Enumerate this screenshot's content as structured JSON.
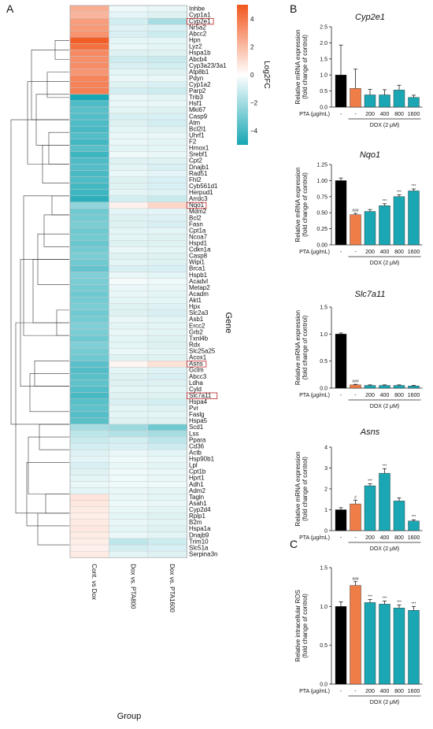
{
  "colors": {
    "black": "#000000",
    "orange": "#ef7d48",
    "teal": "#1aa7b3",
    "box": "#c0393b"
  },
  "panels": {
    "A": "A",
    "B": "B",
    "C": "C"
  },
  "chart_data": [
    {
      "type": "heatmap",
      "xlabel": "Group",
      "ylabel": "Gene",
      "columns": [
        "Cont. vs Dox",
        "Dox vs. PTA800",
        "Dox vs. PTA1600"
      ],
      "legend": {
        "title": "Log2FC",
        "ticks": [
          "4",
          "2",
          "0",
          "−2",
          "−4"
        ],
        "tick_values": [
          4,
          2,
          0,
          -2,
          -4
        ],
        "range": [
          -5,
          5
        ]
      },
      "highlighted": [
        "Cyp2e1",
        "Nqo1",
        "Asns",
        "Slc7a11"
      ],
      "genes": [
        "Inhbe",
        "Cyp1a1",
        "Cyp2e1",
        "Nr5a2",
        "Abcc2",
        "Hpn",
        "Lyz2",
        "Hspa1b",
        "Abcb4",
        "Cyp3a23/3a1",
        "Atp8b1",
        "Pdyn",
        "Cyp1a2",
        "Parp2",
        "Trib3",
        "Hsf1",
        "Mki67",
        "Casp9",
        "Atm",
        "Bcl2l1",
        "Uhrf1",
        "F2",
        "Hmox1",
        "Srebf1",
        "Cpt2",
        "Dnajb1",
        "Rad51",
        "Fhl2",
        "Cyb561d1",
        "Herpud1",
        "Arrdc3",
        "Nqo1",
        "Mdm2",
        "Bcl2",
        "Fasn",
        "Cpt1a",
        "Ncoa7",
        "Hspd1",
        "Cdkn1a",
        "Casp8",
        "Wipi1",
        "Brca1",
        "Hspb1",
        "Acadvl",
        "Metap2",
        "Acadm",
        "Akt1",
        "Hpx",
        "Slc2a3",
        "Asb1",
        "Ercc2",
        "Grb2",
        "Txnl4b",
        "Rdx",
        "Slc25a25",
        "Acox1",
        "Asns",
        "Gclm",
        "Abcc3",
        "Ldha",
        "Cyld",
        "Slc7a11",
        "Hspa4",
        "Pvr",
        "Faslg",
        "Hspa5",
        "Scd1",
        "Lss",
        "Ppara",
        "Cd36",
        "Actb",
        "Hsp90b1",
        "Lpl",
        "Cpt1b",
        "Hprt1",
        "Adh1",
        "Adm2",
        "Tagln",
        "Asah1",
        "Cyp2d4",
        "Rplp1",
        "B2m",
        "Hspa1a",
        "Dnajb9",
        "Trim10",
        "Slc51a",
        "Serpina3n"
      ],
      "values": [
        [
          2.4,
          -0.3,
          -0.4
        ],
        [
          2.2,
          -0.5,
          -0.6
        ],
        [
          2.9,
          -0.8,
          -1.6
        ],
        [
          3.0,
          -0.6,
          -0.7
        ],
        [
          3.2,
          -0.7,
          -0.9
        ],
        [
          4.8,
          -0.5,
          -0.5
        ],
        [
          4.2,
          -0.4,
          -0.5
        ],
        [
          3.5,
          -0.6,
          -0.6
        ],
        [
          3.3,
          -0.9,
          -1.0
        ],
        [
          3.4,
          -0.7,
          -0.8
        ],
        [
          3.1,
          -0.5,
          -0.6
        ],
        [
          3.6,
          -0.4,
          -0.4
        ],
        [
          3.7,
          -0.6,
          -0.7
        ],
        [
          3.8,
          -0.8,
          -0.9
        ],
        [
          -4.2,
          -0.4,
          -0.5
        ],
        [
          -3.2,
          -0.4,
          -0.4
        ],
        [
          -3.0,
          -0.5,
          -0.6
        ],
        [
          -3.1,
          -0.7,
          -0.7
        ],
        [
          -3.2,
          -0.6,
          -0.8
        ],
        [
          -3.3,
          -0.5,
          -0.6
        ],
        [
          -3.1,
          -0.4,
          -0.4
        ],
        [
          -3.4,
          -0.4,
          -0.5
        ],
        [
          -3.0,
          -0.5,
          -0.5
        ],
        [
          -3.5,
          -0.3,
          -0.4
        ],
        [
          -3.2,
          -0.6,
          -0.6
        ],
        [
          -3.1,
          -0.5,
          -0.7
        ],
        [
          -3.3,
          -0.4,
          -0.5
        ],
        [
          -3.2,
          -0.6,
          -0.7
        ],
        [
          -3.4,
          -0.6,
          -0.7
        ],
        [
          -3.5,
          -0.5,
          -0.6
        ],
        [
          -3.8,
          -0.8,
          -1.0
        ],
        [
          -2.0,
          0.4,
          1.2
        ],
        [
          -2.6,
          -0.5,
          -0.5
        ],
        [
          -2.5,
          -0.6,
          -0.6
        ],
        [
          -2.4,
          -0.6,
          -0.7
        ],
        [
          -2.6,
          -0.5,
          -0.5
        ],
        [
          -2.5,
          -0.5,
          -0.6
        ],
        [
          -2.7,
          -0.6,
          -0.6
        ],
        [
          -2.5,
          -0.4,
          -0.5
        ],
        [
          -2.4,
          -0.6,
          -0.6
        ],
        [
          -2.6,
          -0.5,
          -0.6
        ],
        [
          -2.8,
          -0.7,
          -0.7
        ],
        [
          -2.3,
          -0.4,
          -0.5
        ],
        [
          -2.4,
          -0.2,
          -0.3
        ],
        [
          -2.5,
          -0.4,
          -0.4
        ],
        [
          -2.6,
          -0.4,
          -0.5
        ],
        [
          -2.5,
          -0.5,
          -0.5
        ],
        [
          -2.4,
          -0.6,
          -0.6
        ],
        [
          -2.6,
          -0.6,
          -0.7
        ],
        [
          -2.5,
          -0.4,
          -0.5
        ],
        [
          -2.3,
          -0.5,
          -0.5
        ],
        [
          -2.4,
          -0.4,
          -0.5
        ],
        [
          -2.6,
          -0.5,
          -0.6
        ],
        [
          -2.3,
          -0.5,
          -0.6
        ],
        [
          -2.5,
          -0.4,
          -0.5
        ],
        [
          -2.6,
          -0.6,
          -0.6
        ],
        [
          -3.0,
          0.3,
          0.9
        ],
        [
          -3.1,
          -0.5,
          -0.6
        ],
        [
          -3.0,
          -0.6,
          -0.7
        ],
        [
          -2.9,
          -0.6,
          -0.6
        ],
        [
          -3.1,
          -0.5,
          -0.5
        ],
        [
          -3.3,
          -0.6,
          -0.6
        ],
        [
          -3.0,
          -0.7,
          -0.8
        ],
        [
          -2.9,
          -0.5,
          -0.6
        ],
        [
          -3.1,
          -0.5,
          -0.5
        ],
        [
          -3.0,
          -0.6,
          -0.6
        ],
        [
          -1.6,
          -1.8,
          -2.6
        ],
        [
          -1.2,
          -1.4,
          -1.6
        ],
        [
          -1.0,
          -0.8,
          -1.2
        ],
        [
          -0.8,
          -0.7,
          -0.9
        ],
        [
          -0.6,
          -0.4,
          -0.5
        ],
        [
          -0.5,
          -0.3,
          -0.4
        ],
        [
          -0.7,
          -0.4,
          -0.5
        ],
        [
          -0.6,
          -0.3,
          -0.4
        ],
        [
          -0.5,
          -0.3,
          -0.4
        ],
        [
          -0.4,
          -0.3,
          -0.3
        ],
        [
          -0.5,
          -0.4,
          -0.5
        ],
        [
          0.8,
          -0.4,
          -0.5
        ],
        [
          0.7,
          -0.3,
          -0.4
        ],
        [
          0.6,
          -0.4,
          -0.5
        ],
        [
          0.5,
          -0.5,
          -0.6
        ],
        [
          0.6,
          -0.4,
          -0.5
        ],
        [
          0.7,
          -0.5,
          -0.6
        ],
        [
          0.6,
          -0.4,
          -0.5
        ],
        [
          0.5,
          -1.2,
          -0.9
        ],
        [
          0.4,
          -0.8,
          -0.7
        ],
        [
          0.6,
          -0.5,
          -0.6
        ]
      ]
    },
    {
      "type": "bar",
      "panel": "B",
      "title": "Cyp2e1",
      "ylabel": "Relative mRNA expression",
      "ylabel2": "(fold change of control)",
      "ylim": [
        0,
        2.5
      ],
      "yticks": [
        "0.0",
        "0.5",
        "1.0",
        "1.5",
        "2.0",
        "2.5"
      ],
      "ytick_values": [
        0,
        0.5,
        1,
        1.5,
        2,
        2.5
      ],
      "xaxis_label": "PTA (μg/mL)",
      "categories": [
        "-",
        "-",
        "200",
        "400",
        "800",
        "1600"
      ],
      "group_label": "DOX (2 μM)",
      "values": [
        1.0,
        0.58,
        0.38,
        0.38,
        0.53,
        0.3
      ],
      "errors": [
        0.93,
        0.6,
        0.17,
        0.16,
        0.15,
        0.07
      ],
      "bar_colors": [
        "black",
        "orange",
        "teal",
        "teal",
        "teal",
        "teal"
      ],
      "sig": [
        "",
        "",
        "",
        "",
        "",
        ""
      ]
    },
    {
      "type": "bar",
      "panel": "B",
      "title": "Nqo1",
      "ylabel": "Relative mRNA expression",
      "ylabel2": "(fold change of control)",
      "ylim": [
        0,
        1.25
      ],
      "yticks": [
        "0.00",
        "0.25",
        "0.50",
        "0.75",
        "1.00",
        "1.25"
      ],
      "ytick_values": [
        0,
        0.25,
        0.5,
        0.75,
        1.0,
        1.25
      ],
      "xaxis_label": "PTA (μg/mL)",
      "categories": [
        "-",
        "-",
        "200",
        "400",
        "800",
        "1600"
      ],
      "group_label": "DOX (2 μM)",
      "values": [
        1.0,
        0.47,
        0.52,
        0.61,
        0.75,
        0.84
      ],
      "errors": [
        0.04,
        0.02,
        0.03,
        0.03,
        0.03,
        0.03
      ],
      "bar_colors": [
        "black",
        "orange",
        "teal",
        "teal",
        "teal",
        "teal"
      ],
      "sig": [
        "",
        "###",
        "",
        "***",
        "***",
        "***"
      ]
    },
    {
      "type": "bar",
      "panel": "B",
      "title": "Slc7a11",
      "ylabel": "Relative mRNA expression",
      "ylabel2": "(fold change of control)",
      "ylim": [
        0,
        1.5
      ],
      "yticks": [
        "0.0",
        "0.5",
        "1.0",
        "1.5"
      ],
      "ytick_values": [
        0,
        0.5,
        1.0,
        1.5
      ],
      "xaxis_label": "PTA (μg/mL)",
      "categories": [
        "-",
        "-",
        "200",
        "400",
        "800",
        "1600"
      ],
      "group_label": "DOX (2 μM)",
      "values": [
        1.0,
        0.06,
        0.05,
        0.05,
        0.05,
        0.04
      ],
      "errors": [
        0.02,
        0.01,
        0.01,
        0.01,
        0.01,
        0.01
      ],
      "bar_colors": [
        "black",
        "orange",
        "teal",
        "teal",
        "teal",
        "teal"
      ],
      "sig": [
        "",
        "###",
        "",
        "",
        "",
        ""
      ]
    },
    {
      "type": "bar",
      "panel": "B",
      "title": "Asns",
      "ylabel": "Relative mRNA expression",
      "ylabel2": "(fold change of control)",
      "ylim": [
        0,
        4
      ],
      "yticks": [
        "0",
        "1",
        "2",
        "3",
        "4"
      ],
      "ytick_values": [
        0,
        1,
        2,
        3,
        4
      ],
      "xaxis_label": "PTA (μg/mL)",
      "categories": [
        "-",
        "-",
        "200",
        "400",
        "800",
        "1600"
      ],
      "group_label": "DOX (2 μM)",
      "values": [
        1.0,
        1.28,
        2.15,
        2.75,
        1.42,
        0.46
      ],
      "errors": [
        0.1,
        0.18,
        0.1,
        0.22,
        0.15,
        0.06
      ],
      "bar_colors": [
        "black",
        "orange",
        "teal",
        "teal",
        "teal",
        "teal"
      ],
      "sig": [
        "",
        "#",
        "***",
        "***",
        "",
        "***"
      ]
    },
    {
      "type": "bar",
      "panel": "C",
      "title": "",
      "ylabel": "Relative intracellular ROS",
      "ylabel2": "(fold change of control)",
      "ylim": [
        0,
        1.5
      ],
      "yticks": [
        "0.0",
        "0.5",
        "1.0",
        "1.5"
      ],
      "ytick_values": [
        0,
        0.5,
        1.0,
        1.5
      ],
      "xaxis_label": "PTA (μg/mL)",
      "categories": [
        "-",
        "-",
        "200",
        "400",
        "800",
        "1600"
      ],
      "group_label": "DOX (2 μM)",
      "values": [
        1.0,
        1.27,
        1.05,
        1.03,
        0.98,
        0.95
      ],
      "errors": [
        0.06,
        0.05,
        0.04,
        0.04,
        0.04,
        0.05
      ],
      "bar_colors": [
        "black",
        "orange",
        "teal",
        "teal",
        "teal",
        "teal"
      ],
      "sig": [
        "",
        "###",
        "***",
        "***",
        "***",
        "***"
      ]
    }
  ]
}
